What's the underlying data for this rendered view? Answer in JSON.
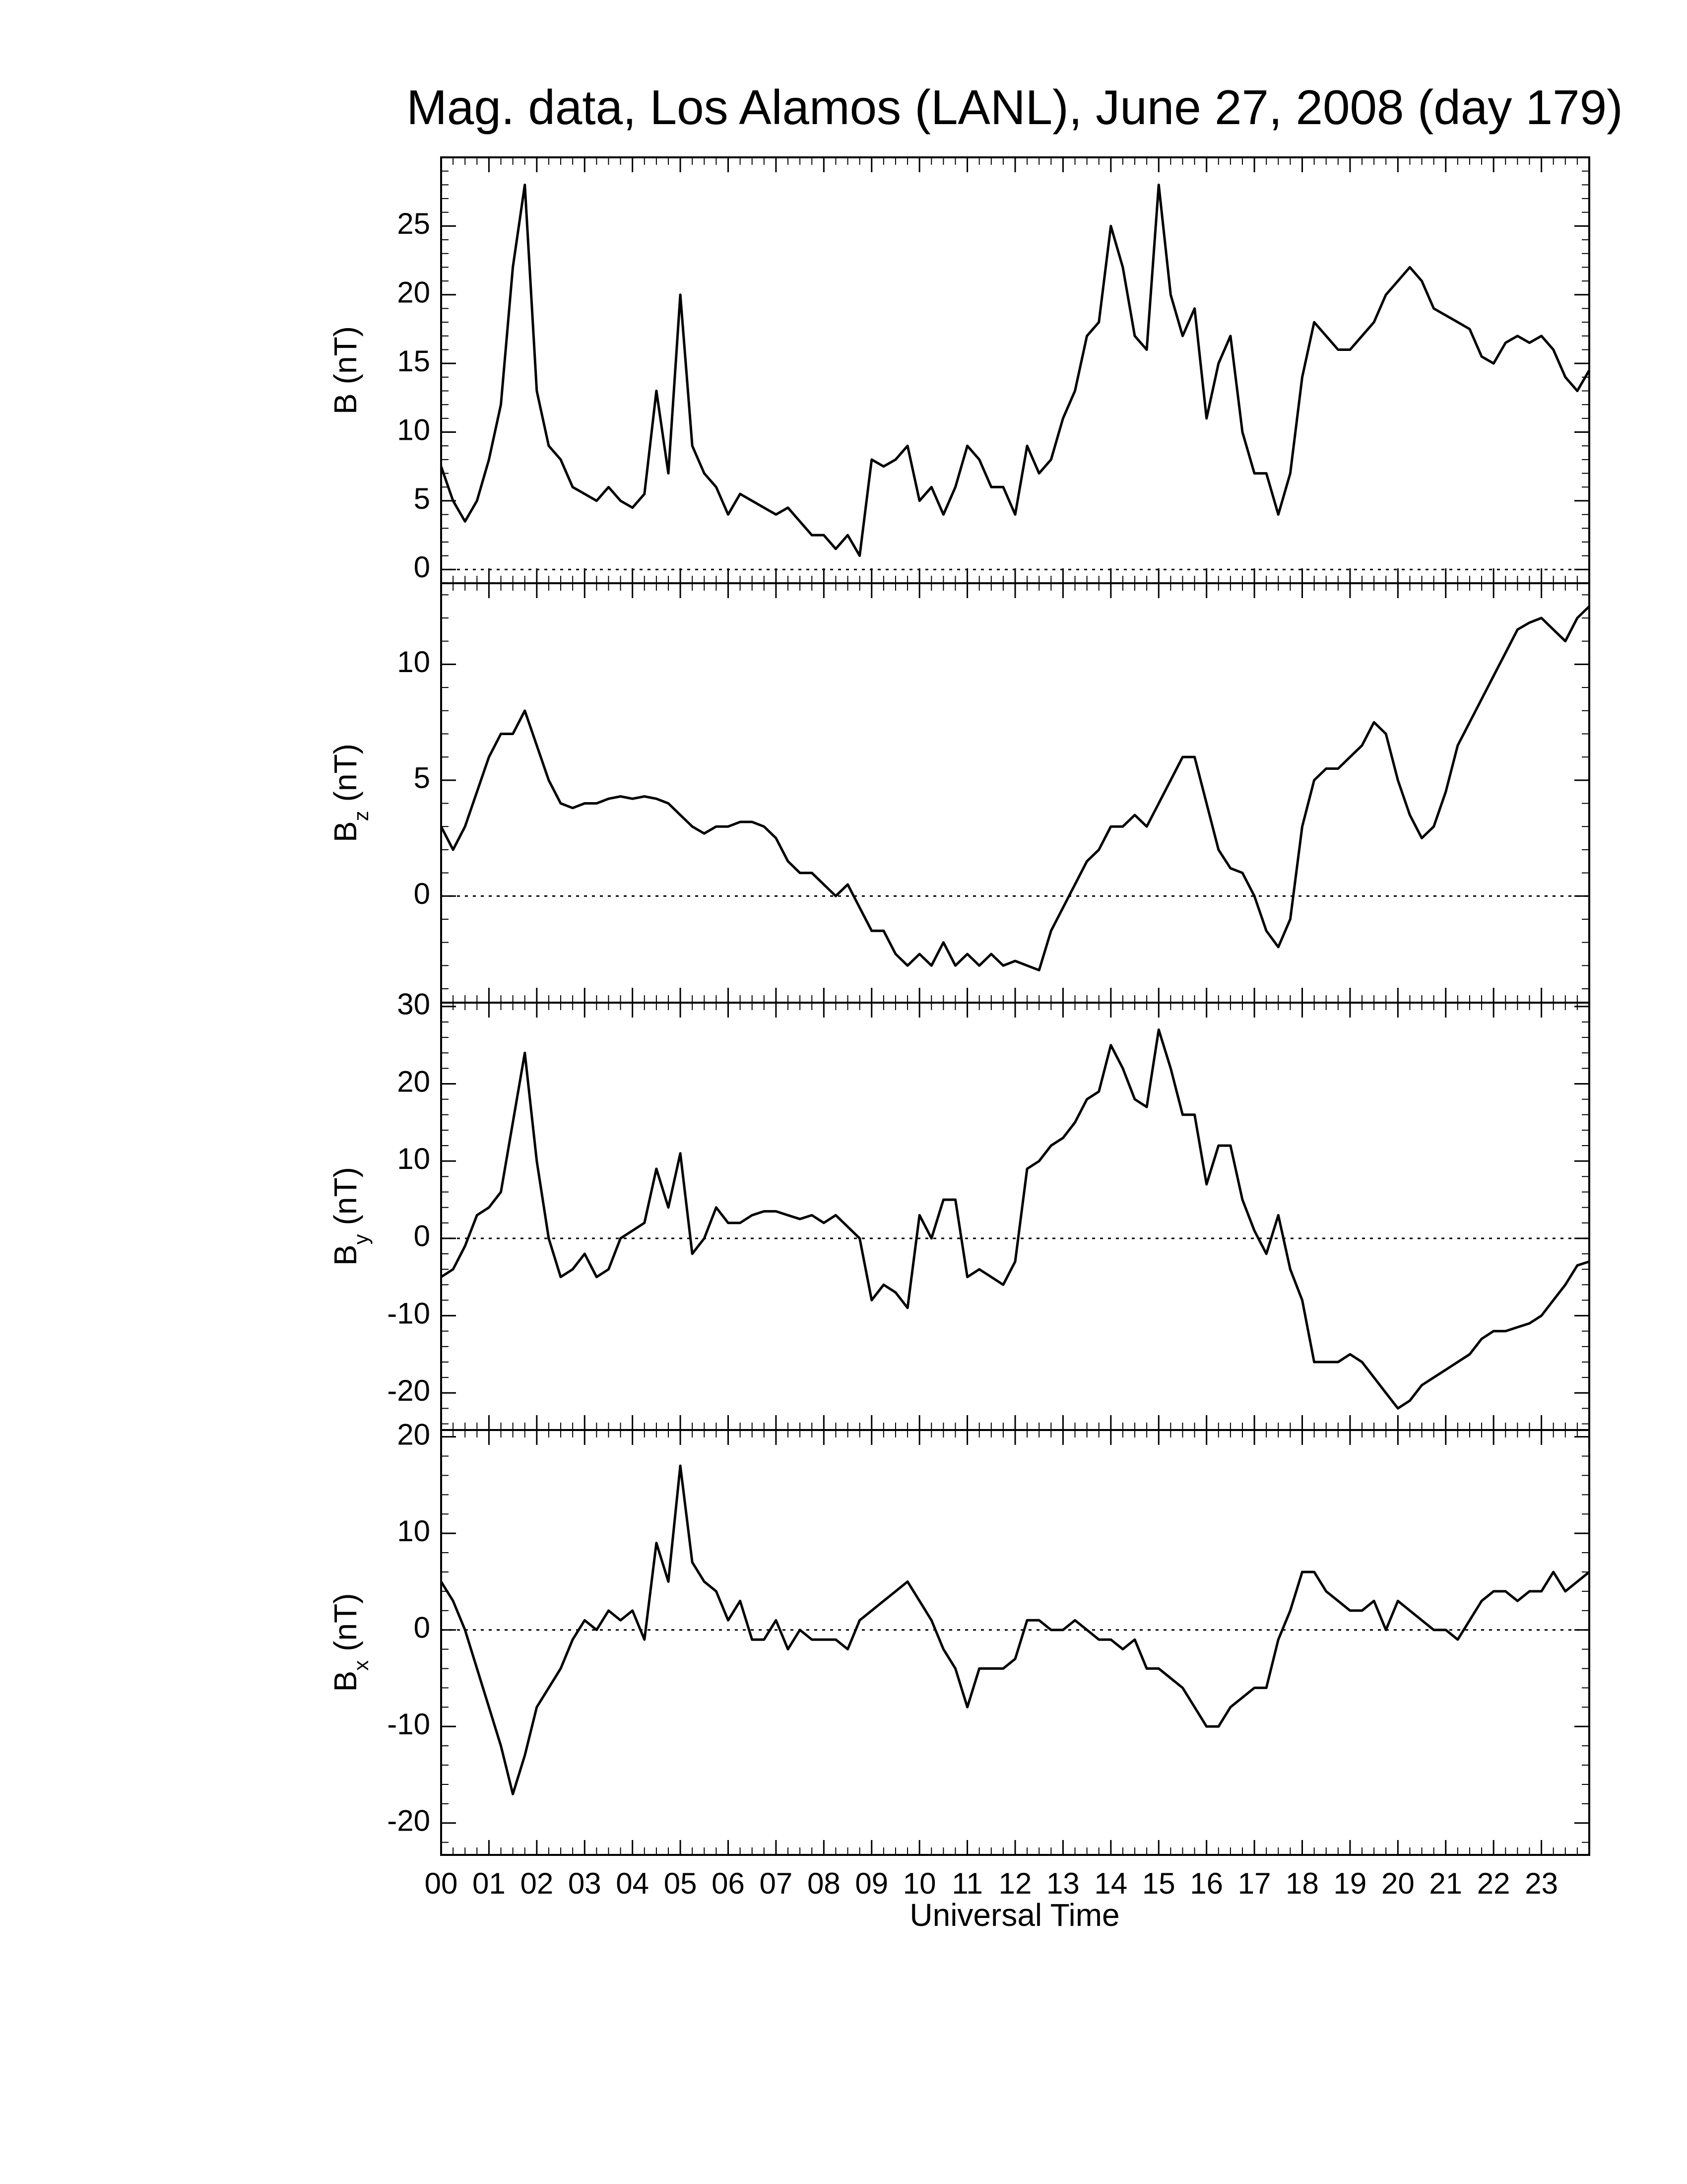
{
  "chart_data": [
    {
      "type": "line",
      "title": "Mag. data, Los Alamos (LANL), June 27, 2008 (day 179)",
      "ylabel": [
        "B",
        "(nT)"
      ],
      "color": "#000000",
      "hline": 0,
      "xlim": [
        0,
        24
      ],
      "ylim": [
        -1,
        30
      ],
      "yticks": [
        0,
        5,
        10,
        15,
        20,
        25
      ],
      "x": [
        0,
        0.25,
        0.5,
        0.75,
        1,
        1.25,
        1.5,
        1.75,
        2,
        2.25,
        2.5,
        2.75,
        3,
        3.25,
        3.5,
        3.75,
        4,
        4.25,
        4.5,
        4.75,
        5,
        5.25,
        5.5,
        5.75,
        6,
        6.25,
        6.5,
        6.75,
        7,
        7.25,
        7.5,
        7.75,
        8,
        8.25,
        8.5,
        8.75,
        9,
        9.25,
        9.5,
        9.75,
        10,
        10.25,
        10.5,
        10.75,
        11,
        11.25,
        11.5,
        11.75,
        12,
        12.25,
        12.5,
        12.75,
        13,
        13.25,
        13.5,
        13.75,
        14,
        14.25,
        14.5,
        14.75,
        15,
        15.25,
        15.5,
        15.75,
        16,
        16.25,
        16.5,
        16.75,
        17,
        17.25,
        17.5,
        17.75,
        18,
        18.25,
        18.5,
        18.75,
        19,
        19.25,
        19.5,
        19.75,
        20,
        20.25,
        20.5,
        20.75,
        21,
        21.25,
        21.5,
        21.75,
        22,
        22.25,
        22.5,
        22.75,
        23,
        23.25,
        23.5,
        23.75,
        24
      ],
      "values": [
        7.5,
        5,
        3.5,
        5,
        8,
        12,
        22,
        28,
        13,
        9,
        8,
        6,
        5.5,
        5,
        6,
        5,
        4.5,
        5.5,
        13,
        7,
        20,
        9,
        7,
        6,
        4,
        5.5,
        5,
        4.5,
        4,
        4.5,
        3.5,
        2.5,
        2.5,
        1.5,
        2.5,
        1,
        8,
        7.5,
        8,
        9,
        5,
        6,
        4,
        6,
        9,
        8,
        6,
        6,
        4,
        9,
        7,
        8,
        11,
        13,
        17,
        18,
        25,
        22,
        17,
        16,
        28,
        20,
        17,
        19,
        11,
        15,
        17,
        10,
        7,
        7,
        4,
        7,
        14,
        18,
        17,
        16,
        16,
        17,
        18,
        20,
        21,
        22,
        21,
        19,
        18.5,
        18,
        17.5,
        15.5,
        15,
        16.5,
        17,
        16.5,
        17,
        16,
        14,
        13,
        14.5
      ]
    },
    {
      "type": "line",
      "ylabel": [
        "B",
        "z",
        "(nT)"
      ],
      "color": "#000000",
      "hline": 0,
      "xlim": [
        0,
        24
      ],
      "ylim": [
        -4.6,
        13.5
      ],
      "yticks": [
        0,
        5,
        10
      ],
      "x": [
        0,
        0.25,
        0.5,
        0.75,
        1,
        1.25,
        1.5,
        1.75,
        2,
        2.25,
        2.5,
        2.75,
        3,
        3.25,
        3.5,
        3.75,
        4,
        4.25,
        4.5,
        4.75,
        5,
        5.25,
        5.5,
        5.75,
        6,
        6.25,
        6.5,
        6.75,
        7,
        7.25,
        7.5,
        7.75,
        8,
        8.25,
        8.5,
        8.75,
        9,
        9.25,
        9.5,
        9.75,
        10,
        10.25,
        10.5,
        10.75,
        11,
        11.25,
        11.5,
        11.75,
        12,
        12.25,
        12.5,
        12.75,
        13,
        13.25,
        13.5,
        13.75,
        14,
        14.25,
        14.5,
        14.75,
        15,
        15.25,
        15.5,
        15.75,
        16,
        16.25,
        16.5,
        16.75,
        17,
        17.25,
        17.5,
        17.75,
        18,
        18.25,
        18.5,
        18.75,
        19,
        19.25,
        19.5,
        19.75,
        20,
        20.25,
        20.5,
        20.75,
        21,
        21.25,
        21.5,
        21.75,
        22,
        22.25,
        22.5,
        22.75,
        23,
        23.25,
        23.5,
        23.75,
        24
      ],
      "values": [
        3,
        2,
        3,
        4.5,
        6,
        7,
        7,
        8,
        6.5,
        5,
        4,
        3.8,
        4,
        4,
        4.2,
        4.3,
        4.2,
        4.3,
        4.2,
        4,
        3.5,
        3,
        2.7,
        3,
        3,
        3.2,
        3.2,
        3,
        2.5,
        1.5,
        1,
        1,
        0.5,
        0,
        0.5,
        -0.5,
        -1.5,
        -1.5,
        -2.5,
        -3,
        -2.5,
        -3,
        -2,
        -3,
        -2.5,
        -3,
        -2.5,
        -3,
        -2.8,
        -3,
        -3.2,
        -1.5,
        -0.5,
        0.5,
        1.5,
        2,
        3,
        3,
        3.5,
        3,
        4,
        5,
        6,
        6,
        4,
        2,
        1.2,
        1,
        0,
        -1.5,
        -2.2,
        -1,
        3,
        5,
        5.5,
        5.5,
        6,
        6.5,
        7.5,
        7,
        5,
        3.5,
        2.5,
        3,
        4.5,
        6.5,
        7.5,
        8.5,
        9.5,
        10.5,
        11.5,
        11.8,
        12,
        11.5,
        11,
        12,
        12.5
      ]
    },
    {
      "type": "line",
      "ylabel": [
        "B",
        "y",
        "(nT)"
      ],
      "color": "#000000",
      "hline": 0,
      "xlim": [
        0,
        24
      ],
      "ylim": [
        -24.8,
        30.5
      ],
      "yticks": [
        -20,
        -10,
        0,
        10,
        20,
        30
      ],
      "x": [
        0,
        0.25,
        0.5,
        0.75,
        1,
        1.25,
        1.5,
        1.75,
        2,
        2.25,
        2.5,
        2.75,
        3,
        3.25,
        3.5,
        3.75,
        4,
        4.25,
        4.5,
        4.75,
        5,
        5.25,
        5.5,
        5.75,
        6,
        6.25,
        6.5,
        6.75,
        7,
        7.25,
        7.5,
        7.75,
        8,
        8.25,
        8.5,
        8.75,
        9,
        9.25,
        9.5,
        9.75,
        10,
        10.25,
        10.5,
        10.75,
        11,
        11.25,
        11.5,
        11.75,
        12,
        12.25,
        12.5,
        12.75,
        13,
        13.25,
        13.5,
        13.75,
        14,
        14.25,
        14.5,
        14.75,
        15,
        15.25,
        15.5,
        15.75,
        16,
        16.25,
        16.5,
        16.75,
        17,
        17.25,
        17.5,
        17.75,
        18,
        18.25,
        18.5,
        18.75,
        19,
        19.25,
        19.5,
        19.75,
        20,
        20.25,
        20.5,
        20.75,
        21,
        21.25,
        21.5,
        21.75,
        22,
        22.25,
        22.5,
        22.75,
        23,
        23.25,
        23.5,
        23.75,
        24
      ],
      "values": [
        -5,
        -4,
        -1,
        3,
        4,
        6,
        15,
        24,
        10,
        0,
        -5,
        -4,
        -2,
        -5,
        -4,
        0,
        1,
        2,
        9,
        4,
        11,
        -2,
        0,
        4,
        2,
        2,
        3,
        3.5,
        3.5,
        3,
        2.5,
        3,
        2,
        3,
        1.5,
        0,
        -8,
        -6,
        -7,
        -9,
        3,
        0,
        5,
        5,
        -5,
        -4,
        -5,
        -6,
        -3,
        9,
        10,
        12,
        13,
        15,
        18,
        19,
        25,
        22,
        18,
        17,
        27,
        22,
        16,
        16,
        7,
        12,
        12,
        5,
        1,
        -2,
        3,
        -4,
        -8,
        -16,
        -16,
        -16,
        -15,
        -16,
        -18,
        -20,
        -22,
        -21,
        -19,
        -18,
        -17,
        -16,
        -15,
        -13,
        -12,
        -12,
        -11.5,
        -11,
        -10,
        -8,
        -6,
        -3.5,
        -3
      ]
    },
    {
      "type": "line",
      "ylabel": [
        "B",
        "x",
        "(nT)"
      ],
      "color": "#000000",
      "hline": 0,
      "xlabel": "Universal Time",
      "xlim": [
        0,
        24
      ],
      "ylim": [
        -23.3,
        20.7
      ],
      "yticks": [
        -20,
        -10,
        0,
        10,
        20
      ],
      "xticks": [
        {
          "value": 0,
          "label": "00"
        },
        {
          "value": 1,
          "label": "01"
        },
        {
          "value": 2,
          "label": "02"
        },
        {
          "value": 3,
          "label": "03"
        },
        {
          "value": 4,
          "label": "04"
        },
        {
          "value": 5,
          "label": "05"
        },
        {
          "value": 6,
          "label": "06"
        },
        {
          "value": 7,
          "label": "07"
        },
        {
          "value": 8,
          "label": "08"
        },
        {
          "value": 9,
          "label": "09"
        },
        10,
        11,
        12,
        13,
        14,
        15,
        16,
        17,
        18,
        19,
        20,
        21,
        22,
        23
      ],
      "x": [
        0,
        0.25,
        0.5,
        0.75,
        1,
        1.25,
        1.5,
        1.75,
        2,
        2.25,
        2.5,
        2.75,
        3,
        3.25,
        3.5,
        3.75,
        4,
        4.25,
        4.5,
        4.75,
        5,
        5.25,
        5.5,
        5.75,
        6,
        6.25,
        6.5,
        6.75,
        7,
        7.25,
        7.5,
        7.75,
        8,
        8.25,
        8.5,
        8.75,
        9,
        9.25,
        9.5,
        9.75,
        10,
        10.25,
        10.5,
        10.75,
        11,
        11.25,
        11.5,
        11.75,
        12,
        12.25,
        12.5,
        12.75,
        13,
        13.25,
        13.5,
        13.75,
        14,
        14.25,
        14.5,
        14.75,
        15,
        15.25,
        15.5,
        15.75,
        16,
        16.25,
        16.5,
        16.75,
        17,
        17.25,
        17.5,
        17.75,
        18,
        18.25,
        18.5,
        18.75,
        19,
        19.25,
        19.5,
        19.75,
        20,
        20.25,
        20.5,
        20.75,
        21,
        21.25,
        21.5,
        21.75,
        22,
        22.25,
        22.5,
        22.75,
        23,
        23.25,
        23.5,
        23.75,
        24
      ],
      "values": [
        5,
        3,
        0,
        -4,
        -8,
        -12,
        -17,
        -13,
        -8,
        -6,
        -4,
        -1,
        1,
        0,
        2,
        1,
        2,
        -1,
        9,
        5,
        17,
        7,
        5,
        4,
        1,
        3,
        -1,
        -1,
        1,
        -2,
        0,
        -1,
        -1,
        -1,
        -2,
        1,
        2,
        3,
        4,
        5,
        3,
        1,
        -2,
        -4,
        -8,
        -4,
        -4,
        -4,
        -3,
        1,
        1,
        0,
        0,
        1,
        0,
        -1,
        -1,
        -2,
        -1,
        -4,
        -4,
        -5,
        -6,
        -8,
        -10,
        -10,
        -8,
        -7,
        -6,
        -6,
        -1,
        2,
        6,
        6,
        4,
        3,
        2,
        2,
        3,
        0,
        3,
        2,
        1,
        0,
        0,
        -1,
        1,
        3,
        4,
        4,
        3,
        4,
        4,
        6,
        4,
        5,
        6
      ]
    }
  ]
}
